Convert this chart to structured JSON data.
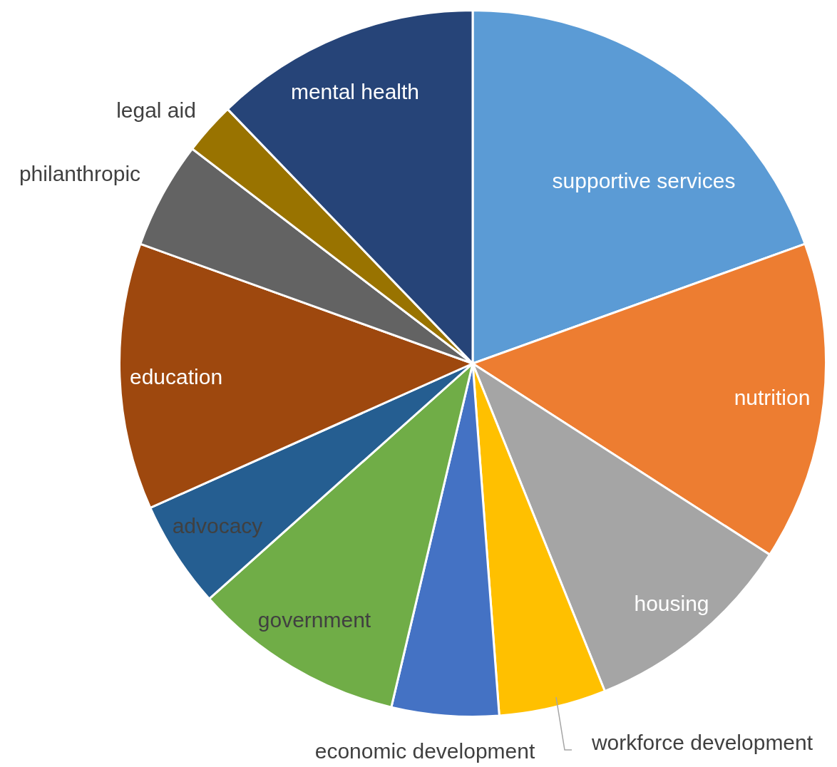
{
  "chart_data": {
    "type": "pie",
    "categories": [
      "supportive services",
      "nutrition",
      "housing",
      "workforce development",
      "economic development",
      "government",
      "advocacy",
      "education",
      "philanthropic",
      "legal aid",
      "mental health"
    ],
    "values": [
      19.5,
      14.6,
      9.8,
      4.9,
      4.9,
      9.7,
      4.9,
      12.2,
      4.9,
      2.4,
      12.2
    ],
    "colors": [
      "#5b9bd5",
      "#ed7d31",
      "#a5a5a5",
      "#ffc000",
      "#4472c4",
      "#70ad47",
      "#255e91",
      "#9e480e",
      "#636363",
      "#997300",
      "#264478"
    ],
    "legend": false
  }
}
